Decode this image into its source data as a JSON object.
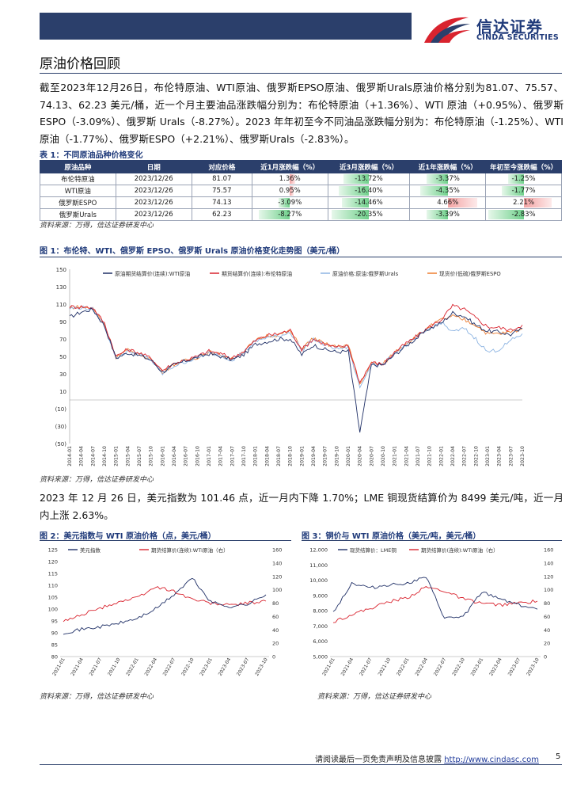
{
  "brand": {
    "cn": "信达证券",
    "en": "CINDA SECURITIES",
    "colors": {
      "navy": "#2b3f6b",
      "red": "#d9232e"
    }
  },
  "section_title": "原油价格回顾",
  "paragraph1": "截至2023年12月26日，布伦特原油、WTI原油、俄罗斯EPSO原油、俄罗斯Urals原油价格分别为81.07、75.57、74.13、62.23 美元/桶，近一个月主要油品涨跌幅分别为：布伦特原油（+1.36%）、WTI 原油（+0.95%）、俄罗斯ESPO（-3.09%）、俄罗斯 Urals（-8.27%）。2023 年年初至今不同油品涨跌幅分别为：布伦特原油（-1.25%）、WTI原油（-1.77%）、俄罗斯ESPO（+2.21%）、俄罗斯Urals（-2.83%）。",
  "table1": {
    "caption": "表 1：不同原油品种价格变化",
    "headers": [
      "原油品种",
      "日期",
      "对应价格",
      "近1月涨跌幅（%）",
      "近3月涨跌幅（%）",
      "近1年涨跌幅（%）",
      "年初至今涨跌幅（%）"
    ],
    "rows": [
      {
        "name": "布伦特原油",
        "date": "2023/12/26",
        "price": "81.07",
        "m1": "1.36%",
        "m3": "-13.72%",
        "y1": "-3.37%",
        "ytd": "-1.25%"
      },
      {
        "name": "WTI原油",
        "date": "2023/12/26",
        "price": "75.57",
        "m1": "0.95%",
        "m3": "-16.40%",
        "y1": "-4.35%",
        "ytd": "-1.77%"
      },
      {
        "name": "俄罗斯ESPO",
        "date": "2023/12/26",
        "price": "74.13",
        "m1": "-3.09%",
        "m3": "-14.46%",
        "y1": "4.66%",
        "ytd": "2.21%"
      },
      {
        "name": "俄罗斯Urals",
        "date": "2023/12/26",
        "price": "62.23",
        "m1": "-8.27%",
        "m3": "-20.35%",
        "y1": "-3.39%",
        "ytd": "-2.83%"
      }
    ],
    "source": "资料来源：万得，信达证券研发中心"
  },
  "figure1": {
    "caption": "图 1：布伦特、WTI、俄罗斯 EPSO、俄罗斯 Urals 原油价格变化走势图（美元/桶）",
    "source": "资料来源：万得，信达证券研发中心"
  },
  "paragraph2": "2023 年 12 月 26 日，美元指数为 101.46 点，近一月内下降 1.70%；LME 铜现货结算价为 8499 美元/吨，近一月内上涨 2.63%。",
  "figure2": {
    "caption": "图 2：美元指数与 WTI 原油价格（点，美元/桶）",
    "source": "资料来源：万得，信达证券研发中心"
  },
  "figure3": {
    "caption": "图 3：铜价与 WTI 原油价格（美元/吨，美元/桶）",
    "source": "资料来源：万得，信达证券研发中心"
  },
  "chart_data": [
    {
      "type": "line",
      "x": [
        "2014-01",
        "2014-04",
        "2014-07",
        "2014-10",
        "2015-01",
        "2015-04",
        "2015-07",
        "2015-10",
        "2016-01",
        "2016-04",
        "2016-07",
        "2016-10",
        "2017-01",
        "2017-04",
        "2017-07",
        "2017-10",
        "2018-01",
        "2018-04",
        "2018-07",
        "2018-10",
        "2019-01",
        "2019-04",
        "2019-07",
        "2019-10",
        "2020-01",
        "2020-04",
        "2020-07",
        "2020-10",
        "2021-01",
        "2021-04",
        "2021-07",
        "2021-10",
        "2022-01",
        "2022-04",
        "2022-07",
        "2022-10",
        "2023-01",
        "2023-04",
        "2023-07",
        "2023-10"
      ],
      "ylim": [
        -50,
        150
      ],
      "yticks": [
        "150",
        "130",
        "110",
        "90",
        "70",
        "50",
        "30",
        "10",
        "(10)",
        "(30)",
        "(50)"
      ],
      "legend": "top",
      "series": [
        {
          "name": "原油期货结算价(连续):WTI原油",
          "color": "#1f2f66",
          "values": [
            95,
            101,
            104,
            85,
            48,
            54,
            51,
            46,
            32,
            40,
            45,
            49,
            53,
            50,
            46,
            52,
            64,
            67,
            70,
            70,
            52,
            63,
            58,
            55,
            56,
            -37,
            40,
            40,
            52,
            62,
            72,
            82,
            88,
            100,
            96,
            86,
            79,
            78,
            75,
            82
          ]
        },
        {
          "name": "期货结算价(连续):布伦特原油",
          "color": "#d9232e",
          "values": [
            107,
            107,
            106,
            88,
            50,
            58,
            54,
            48,
            34,
            42,
            46,
            50,
            56,
            53,
            48,
            56,
            68,
            74,
            76,
            80,
            58,
            70,
            64,
            60,
            62,
            20,
            43,
            41,
            55,
            65,
            74,
            84,
            92,
            108,
            104,
            94,
            84,
            83,
            80,
            86
          ]
        },
        {
          "name": "原油价格:原油:俄罗斯Urals",
          "color": "#8db4e2",
          "values": [
            105,
            106,
            104,
            86,
            48,
            56,
            52,
            46,
            30,
            39,
            44,
            48,
            54,
            51,
            46,
            55,
            67,
            72,
            73,
            78,
            57,
            70,
            63,
            59,
            60,
            14,
            42,
            40,
            54,
            63,
            72,
            82,
            89,
            78,
            82,
            70,
            55,
            58,
            68,
            76
          ]
        },
        {
          "name": "现货价(低硫)俄罗斯ESPO",
          "color": "#ed7d31",
          "values": [
            106,
            107,
            105,
            87,
            49,
            57,
            53,
            47,
            32,
            41,
            45,
            49,
            55,
            52,
            47,
            56,
            68,
            74,
            75,
            79,
            59,
            71,
            64,
            61,
            63,
            18,
            42,
            41,
            55,
            65,
            74,
            84,
            92,
            96,
            92,
            86,
            76,
            76,
            78,
            82
          ]
        }
      ]
    },
    {
      "type": "line",
      "x": [
        "2021-01",
        "2021-04",
        "2021-07",
        "2021-10",
        "2022-01",
        "2022-04",
        "2022-07",
        "2022-10",
        "2023-01",
        "2023-04",
        "2023-07",
        "2023-10"
      ],
      "y_left_lim": [
        80,
        125
      ],
      "y_right_lim": [
        0,
        160
      ],
      "y_left_ticks": [
        "125",
        "120",
        "115",
        "110",
        "105",
        "100",
        "95",
        "90",
        "85",
        "80"
      ],
      "y_right_ticks": [
        "160",
        "140",
        "120",
        "100",
        "80",
        "60",
        "40",
        "20",
        "0"
      ],
      "legend": "top",
      "series": [
        {
          "name": "美元指数",
          "axis": "left",
          "color": "#1f2f66",
          "values": [
            90,
            91.5,
            92.5,
            94,
            96,
            100,
            106,
            113,
            103,
            101,
            102,
            106
          ]
        },
        {
          "name": "期货结算价(连续):WTI原油（右）",
          "axis": "right",
          "color": "#d9232e",
          "values": [
            52,
            63,
            72,
            82,
            88,
            104,
            98,
            86,
            80,
            77,
            80,
            83
          ]
        }
      ]
    },
    {
      "type": "line",
      "x": [
        "2021-01",
        "2021-04",
        "2021-07",
        "2021-10",
        "2022-01",
        "2022-04",
        "2022-07",
        "2022-10",
        "2023-01",
        "2023-04",
        "2023-07",
        "2023-10"
      ],
      "y_left_lim": [
        5000,
        12000
      ],
      "y_right_lim": [
        0,
        160
      ],
      "y_left_ticks": [
        "12,000",
        "11,000",
        "10,000",
        "9,000",
        "8,000",
        "7,000",
        "6,000",
        "5,000"
      ],
      "y_right_ticks": [
        "160",
        "140",
        "120",
        "100",
        "80",
        "60",
        "40",
        "20",
        "0"
      ],
      "legend": "top",
      "series": [
        {
          "name": "现货结算价：LME铜",
          "axis": "left",
          "color": "#1f2f66",
          "values": [
            7900,
            9800,
            9500,
            9700,
            9800,
            10200,
            7500,
            7600,
            9200,
            8800,
            8400,
            8100
          ]
        },
        {
          "name": "期货结算价(连续):WTI原油（右）",
          "axis": "right",
          "color": "#d9232e",
          "values": [
            52,
            63,
            72,
            82,
            88,
            104,
            98,
            86,
            80,
            77,
            80,
            83
          ]
        }
      ]
    }
  ],
  "footer": {
    "text": "请阅读最后一页免责声明及信息披露",
    "url": "http://www.cindasc.com",
    "page": "5"
  }
}
